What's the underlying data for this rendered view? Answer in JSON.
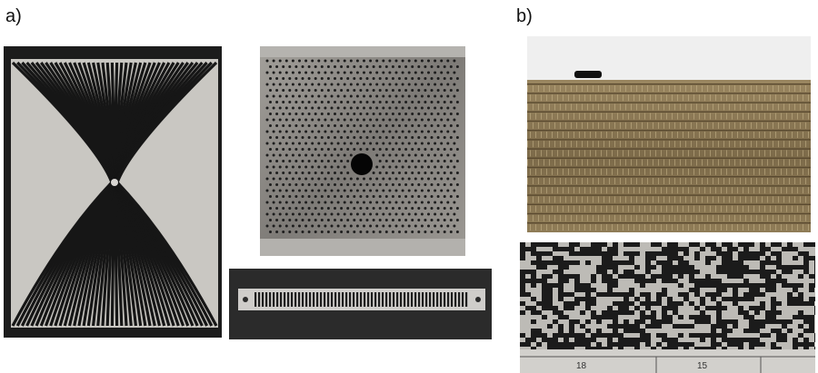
{
  "panels": {
    "a": {
      "label": "a)"
    },
    "b": {
      "label": "b)"
    }
  },
  "photos": {
    "radial_plate": {
      "icon": "radial-slot-plate-photo"
    },
    "perforated_plate": {
      "icon": "perforated-plate-photo"
    },
    "slotted_strip": {
      "icon": "slotted-strip-photo"
    },
    "corrugated_panel": {
      "icon": "corrugated-panel-photo"
    },
    "binary_pattern": {
      "icon": "binary-pattern-photo",
      "ruler_marks": [
        "18",
        "15"
      ]
    }
  },
  "colors": {
    "metal": "#b9b7b3",
    "dark": "#161616",
    "brass": "#8f7a55"
  }
}
